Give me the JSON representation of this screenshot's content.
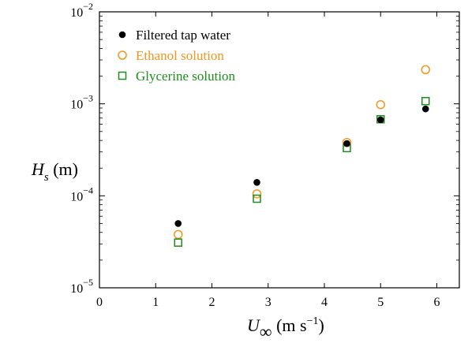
{
  "chart_data": {
    "type": "scatter",
    "title": "",
    "xlabel": {
      "main": "U",
      "sub": "∞",
      "unit_open": " (m s",
      "unit_sup": "−1",
      "unit_close": ")"
    },
    "ylabel": {
      "main": "H",
      "sub": "s",
      "unit": " (m)"
    },
    "xlim": [
      0,
      6.4
    ],
    "ylim": [
      1e-05,
      0.01
    ],
    "yscale": "log",
    "xticks": [
      0,
      1,
      2,
      3,
      4,
      5,
      6
    ],
    "xtick_labels": [
      "0",
      "1",
      "2",
      "3",
      "4",
      "5",
      "6"
    ],
    "yticks": [
      {
        "value": 1e-05,
        "base": "10",
        "exp": "−5"
      },
      {
        "value": 0.0001,
        "base": "10",
        "exp": "−4"
      },
      {
        "value": 0.001,
        "base": "10",
        "exp": "−3"
      },
      {
        "value": 0.01,
        "base": "10",
        "exp": "−2"
      }
    ],
    "grid": false,
    "legend_position": "top-left",
    "series": [
      {
        "name": "Filtered tap water",
        "marker": "filled-circle",
        "color": "#000000",
        "x": [
          1.4,
          2.8,
          4.4,
          5.0,
          5.8
        ],
        "y": [
          5e-05,
          0.00014,
          0.00037,
          0.00067,
          0.00088
        ]
      },
      {
        "name": "Ethanol solution",
        "marker": "open-circle",
        "color": "#F2961E",
        "x": [
          1.4,
          2.8,
          4.4,
          5.0,
          5.8
        ],
        "y": [
          3.8e-05,
          0.000105,
          0.00038,
          0.00098,
          0.00235
        ]
      },
      {
        "name": "Glycerine solution",
        "marker": "open-square",
        "color": "#1E8C1E",
        "x": [
          1.4,
          2.8,
          4.4,
          5.0,
          5.8
        ],
        "y": [
          3.1e-05,
          9.3e-05,
          0.00033,
          0.00068,
          0.00107
        ]
      }
    ]
  }
}
